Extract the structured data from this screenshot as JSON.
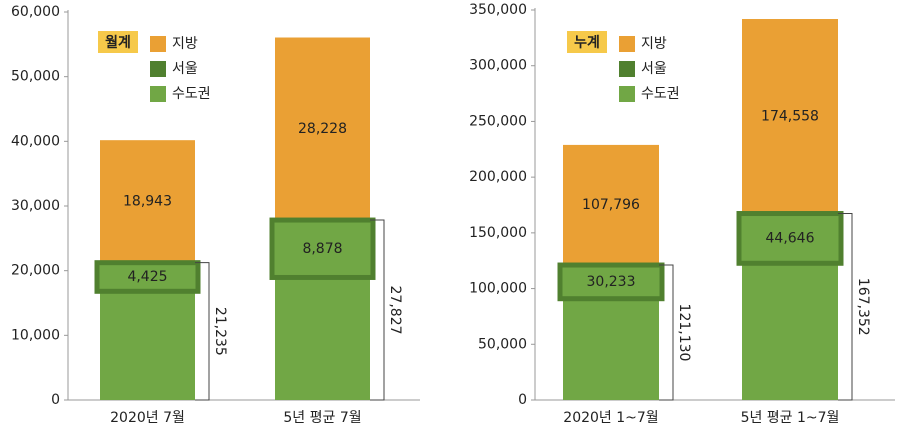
{
  "chart_data": [
    {
      "type": "bar",
      "legend_title": "월계",
      "categories": [
        "2020년 7월",
        "5년 평균 7월"
      ],
      "series": [
        {
          "name": "지방",
          "color": "#eaa034",
          "values": [
            18943,
            28228
          ],
          "value_labels": [
            "18,943",
            "28,228"
          ]
        },
        {
          "name": "서울",
          "color": "#50802f",
          "values": [
            4425,
            8878
          ],
          "value_labels": [
            "4,425",
            "8,878"
          ]
        },
        {
          "name": "수도권",
          "color": "#71a745",
          "values": [
            21235,
            27827
          ],
          "value_labels": [
            "21,235",
            "27,827"
          ]
        }
      ],
      "ylim": [
        0,
        60000
      ],
      "yticks": [
        0,
        {
          "value": 10000,
          "label": "10,000"
        },
        {
          "value": 20000,
          "label": "20,000"
        },
        {
          "value": 30000,
          "label": "30,000"
        },
        {
          "value": 40000,
          "label": "40,000"
        },
        {
          "value": 50000,
          "label": "50,000"
        },
        {
          "value": 60000,
          "label": "60,000"
        }
      ]
    },
    {
      "type": "bar",
      "legend_title": "누계",
      "categories": [
        "2020년 1~7월",
        "5년 평균 1~7월"
      ],
      "series": [
        {
          "name": "지방",
          "color": "#eaa034",
          "values": [
            107796,
            174558
          ],
          "value_labels": [
            "107,796",
            "174,558"
          ]
        },
        {
          "name": "서울",
          "color": "#50802f",
          "values": [
            30233,
            44646
          ],
          "value_labels": [
            "30,233",
            "44,646"
          ]
        },
        {
          "name": "수도권",
          "color": "#71a745",
          "values": [
            121130,
            167352
          ],
          "value_labels": [
            "121,130",
            "167,352"
          ]
        }
      ],
      "ylim": [
        0,
        350000
      ],
      "yticks": [
        0,
        {
          "value": 50000,
          "label": "50,000"
        },
        {
          "value": 100000,
          "label": "100,000"
        },
        {
          "value": 150000,
          "label": "150,000"
        },
        {
          "value": 200000,
          "label": "200,000"
        },
        {
          "value": 250000,
          "label": "250,000"
        },
        {
          "value": 300000,
          "label": "300,000"
        },
        {
          "value": 350000,
          "label": "350,000"
        }
      ]
    }
  ]
}
